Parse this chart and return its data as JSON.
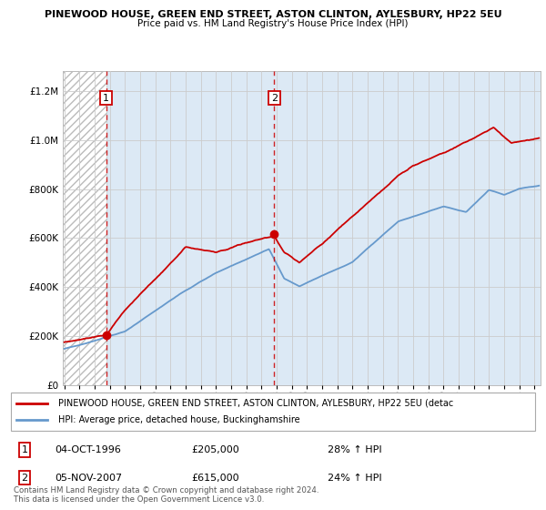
{
  "title1": "PINEWOOD HOUSE, GREEN END STREET, ASTON CLINTON, AYLESBURY, HP22 5EU",
  "title2": "Price paid vs. HM Land Registry's House Price Index (HPI)",
  "legend_line1": "PINEWOOD HOUSE, GREEN END STREET, ASTON CLINTON, AYLESBURY, HP22 5EU (detac",
  "legend_line2": "HPI: Average price, detached house, Buckinghamshire",
  "annotation_text": "Contains HM Land Registry data © Crown copyright and database right 2024.\nThis data is licensed under the Open Government Licence v3.0.",
  "marker1_date": "04-OCT-1996",
  "marker1_price": 205000,
  "marker1_label": "28% ↑ HPI",
  "marker1_x": 1996.75,
  "marker2_date": "05-NOV-2007",
  "marker2_price": 615000,
  "marker2_label": "24% ↑ HPI",
  "marker2_x": 2007.84,
  "ylim": [
    0,
    1280000
  ],
  "xlim_start": 1993.9,
  "xlim_end": 2025.4,
  "hatch_end": 1996.75,
  "red_line_color": "#cc0000",
  "blue_line_color": "#6699cc",
  "fill_color": "#dce9f5",
  "bg_color": "#ffffff",
  "plot_bg_color": "#ffffff",
  "grid_color": "#cccccc"
}
